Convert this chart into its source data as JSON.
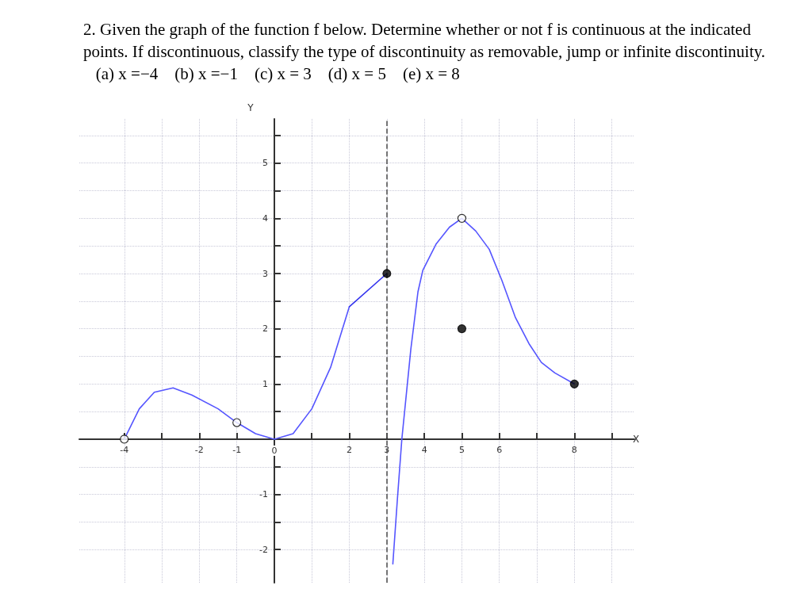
{
  "chart_data": {
    "type": "line",
    "title": "2. Given the graph of the function f below. Determine whether or not f is continuous at the indicated points. If discontinuous, classify the type of discontinuity as removable, jump or infinite discontinuity.      (a) x =−4    (b) x =−1    (c) x = 3    (d) x = 5    (e) x = 8",
    "xlabel": "X",
    "ylabel": "Y",
    "grid": true,
    "line_style": "solid",
    "xlim": [
      -5.2,
      9.6
    ],
    "ylim": [
      -2.6,
      5.8
    ],
    "xticks": [
      -4,
      {
        "value": -3,
        "label": null
      },
      -2,
      -1,
      0,
      {
        "value": 1,
        "label": null
      },
      2,
      3,
      4,
      5,
      6,
      {
        "value": 7,
        "label": null
      },
      8,
      {
        "value": 9,
        "label": null
      }
    ],
    "yticks": [
      -2,
      {
        "value": -1.5,
        "label": null
      },
      -1,
      {
        "value": -0.5,
        "label": null
      },
      {
        "value": 0,
        "label": null
      },
      {
        "value": 0.5,
        "label": null
      },
      1,
      {
        "value": 1.5,
        "label": null
      },
      2,
      {
        "value": 2.5,
        "label": null
      },
      3,
      {
        "value": 3.5,
        "label": null
      },
      4,
      {
        "value": 4.5,
        "label": null
      },
      5,
      {
        "value": 5.5,
        "label": null
      }
    ],
    "ref_lines": [
      {
        "axis": "x",
        "value": 3,
        "label": null,
        "color": "#555555",
        "line_style": "dashed"
      }
    ],
    "series": [
      {
        "color": "#5555ff",
        "x": [
          -4,
          -3.6,
          -3.2,
          -2.7,
          -2.2,
          -1.5,
          -1,
          -0.5,
          0,
          0.5,
          1,
          1.5,
          2
        ],
        "values": [
          0,
          0.55,
          0.85,
          0.93,
          0.8,
          0.55,
          0.3,
          0.1,
          0,
          0.1,
          0.55,
          1.3,
          2.4
        ]
      },
      {
        "color": "#3333ee",
        "x": [
          2,
          3
        ],
        "values": [
          2.4,
          3
        ]
      },
      {
        "color": "#5555ff",
        "x": [
          3.16,
          3.28,
          3.4,
          3.64,
          3.83,
          3.96,
          4.31,
          4.67,
          5,
          5.37,
          5.73,
          6.07,
          6.43,
          6.79,
          7.12,
          7.48,
          8
        ],
        "values": [
          -2.26,
          -1.1,
          0,
          1.63,
          2.67,
          3.06,
          3.53,
          3.84,
          4,
          3.77,
          3.44,
          2.87,
          2.2,
          1.73,
          1.39,
          1.2,
          1
        ]
      },
      {
        "type": "scatter",
        "marker": "circle",
        "color": "#ffffff",
        "x": [
          -4,
          -1,
          5
        ],
        "values": [
          0,
          0.3,
          4
        ]
      },
      {
        "type": "scatter",
        "marker": "circle",
        "color": "#000000",
        "x": [
          3,
          5,
          8
        ],
        "values": [
          3,
          2,
          1
        ]
      }
    ]
  }
}
